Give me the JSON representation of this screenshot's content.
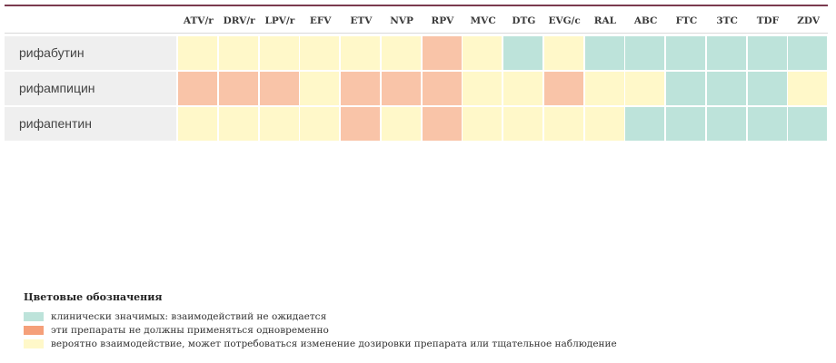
{
  "table": {
    "columns": [
      "ATV/r",
      "DRV/r",
      "LPV/r",
      "EFV",
      "ETV",
      "NVP",
      "RPV",
      "MVC",
      "DTG",
      "EVG/c",
      "RAL",
      "ABC",
      "FTC",
      "3TC",
      "TDF",
      "ZDV"
    ],
    "rows": [
      {
        "drug": "рифабутин",
        "cells": [
          "yellow",
          "yellow",
          "yellow",
          "yellow",
          "yellow",
          "yellow",
          "red",
          "yellow",
          "green",
          "yellow",
          "green",
          "green",
          "green",
          "green",
          "green",
          "green"
        ]
      },
      {
        "drug": "рифампицин",
        "cells": [
          "red",
          "red",
          "red",
          "yellow",
          "red",
          "red",
          "red",
          "yellow",
          "yellow",
          "red",
          "yellow",
          "yellow",
          "green",
          "green",
          "green",
          "yellow"
        ]
      },
      {
        "drug": "рифапентин",
        "cells": [
          "yellow",
          "yellow",
          "yellow",
          "yellow",
          "red",
          "yellow",
          "red",
          "yellow",
          "yellow",
          "yellow",
          "yellow",
          "green",
          "green",
          "green",
          "green",
          "green"
        ]
      }
    ]
  },
  "legend": {
    "title": "Цветовые обозначения",
    "items": [
      {
        "color": "green",
        "label": "клинически значимых: взаимодействий не ожидается"
      },
      {
        "color": "red",
        "label": "эти препараты не должны применяться одновременно"
      },
      {
        "color": "yellow",
        "label": "вероятно взаимодействие, может потребоваться изменение дозировки препарата или тщательное наблюдение"
      }
    ]
  },
  "colors": {
    "green": "#bde3da",
    "red": "#f9c4a8",
    "yellow": "#fff8c9",
    "accent_rule": "#7a3a4f"
  }
}
